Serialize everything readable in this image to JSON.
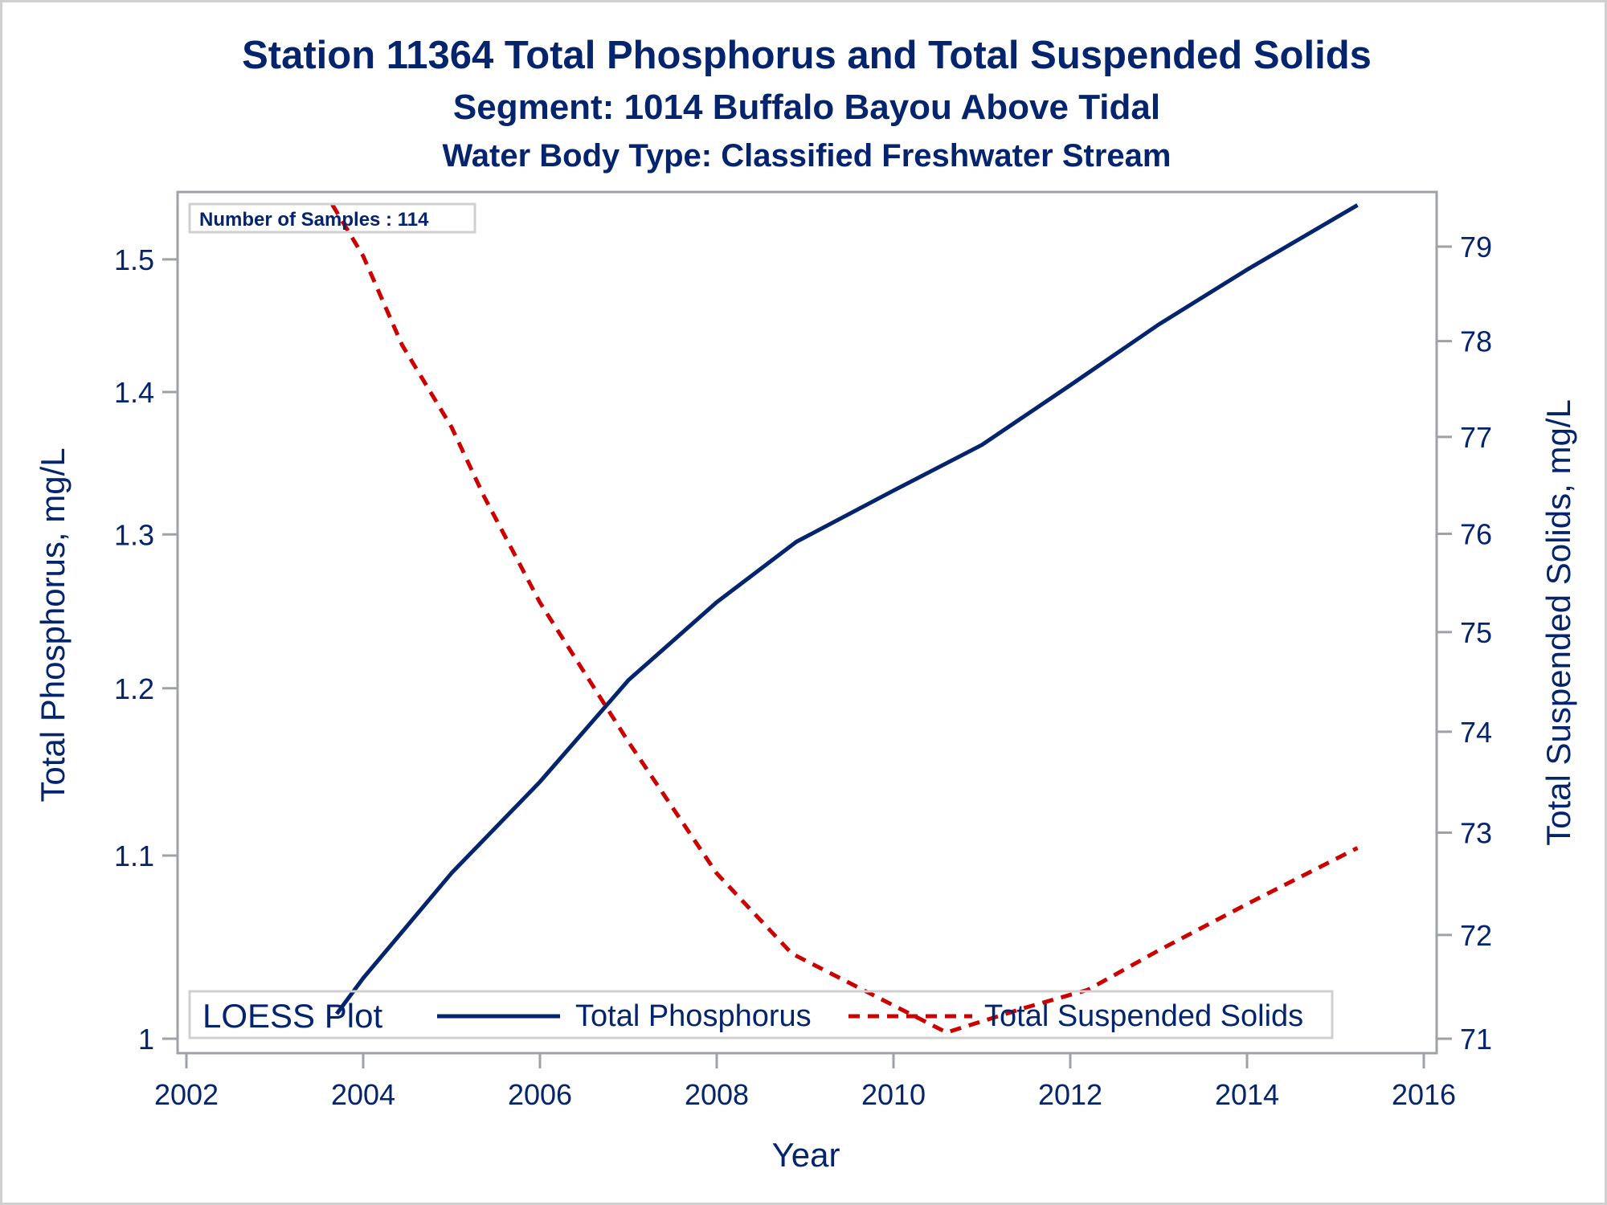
{
  "chart_data": {
    "type": "line",
    "title": "Station 11364  Total Phosphorus and Total Suspended Solids",
    "subtitle": "Segment: 1014  Buffalo Bayou Above Tidal",
    "subtitle2": "Water Body Type: Classified Freshwater Stream",
    "xlabel": "Year",
    "ylabel": "Total Phosphorus, mg/L",
    "y2label": "Total Suspended Solids, mg/L",
    "xlim": [
      2002,
      2016
    ],
    "x_ticks": [
      "2002",
      "2004",
      "2006",
      "2008",
      "2010",
      "2012",
      "2014",
      "2016"
    ],
    "x_tick_values": [
      2002,
      2004,
      2006,
      2008,
      2010,
      2012,
      2014,
      2016
    ],
    "y_scale": "log",
    "ylim": [
      1.0,
      1.56
    ],
    "y_ticks": [
      "1",
      "1.1",
      "1.2",
      "1.3",
      "1.4",
      "1.5"
    ],
    "y_tick_values": [
      1.0,
      1.1,
      1.2,
      1.3,
      1.4,
      1.5
    ],
    "y2_scale": "log",
    "y2lim": [
      71.0,
      79.7
    ],
    "y2_ticks": [
      "71",
      "72",
      "73",
      "74",
      "75",
      "76",
      "77",
      "78",
      "79"
    ],
    "y2_tick_values": [
      71,
      72,
      73,
      74,
      75,
      76,
      77,
      78,
      79
    ],
    "grid": false,
    "annotation": "Number of Samples : 114",
    "legend": {
      "title": "LOESS Plot",
      "placement": "bottom-inside",
      "entries": [
        "Total Phosphorus",
        "Total Suspended Solids"
      ]
    },
    "series": [
      {
        "name": "Total Phosphorus",
        "axis": "left",
        "color": "#05246e",
        "style": "solid",
        "x": [
          2003.7,
          2004.0,
          2005.0,
          2006.0,
          2007.0,
          2008.0,
          2008.9,
          2010.0,
          2011.0,
          2012.0,
          2013.0,
          2014.0,
          2015.25
        ],
        "y": [
          1.013,
          1.032,
          1.09,
          1.143,
          1.205,
          1.255,
          1.295,
          1.33,
          1.362,
          1.405,
          1.45,
          1.492,
          1.543
        ]
      },
      {
        "name": "Total Suspended Solids",
        "axis": "right",
        "color": "#cc0000",
        "style": "dashed",
        "x": [
          2003.65,
          2004.0,
          2004.44,
          2005.0,
          2005.37,
          2006.0,
          2007.0,
          2008.0,
          2008.85,
          2009.7,
          2010.6,
          2011.5,
          2012.2,
          2013.0,
          2014.0,
          2015.25
        ],
        "y": [
          79.45,
          78.9,
          77.96,
          77.1,
          76.38,
          75.3,
          73.9,
          72.6,
          71.82,
          71.45,
          71.06,
          71.3,
          71.47,
          71.85,
          72.3,
          72.85
        ]
      }
    ]
  }
}
